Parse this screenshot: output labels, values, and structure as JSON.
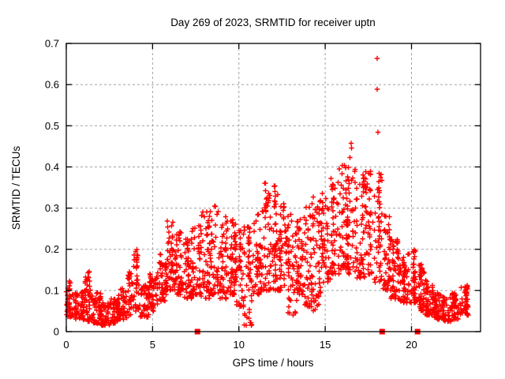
{
  "window": {
    "background_color": "#ffffff"
  },
  "chart_data": {
    "type": "scatter",
    "title": "Day 269 of 2023, SRMTID for receiver uptn",
    "xlabel": "GPS time / hours",
    "ylabel": "SRMTID / TECUs",
    "xlim": [
      0,
      24
    ],
    "ylim": [
      0,
      0.7
    ],
    "xticks": [
      0,
      5,
      10,
      15,
      20
    ],
    "xtick_labels": [
      "0",
      "5",
      "10",
      "15",
      "20"
    ],
    "yticks": [
      0,
      0.1,
      0.2,
      0.3,
      0.4,
      0.5,
      0.6,
      0.7
    ],
    "ytick_labels": [
      "0",
      "0.1",
      "0.2",
      "0.3",
      "0.4",
      "0.5",
      "0.6",
      "0.7"
    ],
    "grid": "dashed",
    "legend": "none",
    "series": [
      {
        "name": "srmtid",
        "marker": "plus",
        "color": "#ff0000",
        "envelope_bins_comment": "each bin = [hour_start, hour_end, y_min, y_max, point_count] describing the dense scatter cloud",
        "envelope_bins": [
          [
            0.0,
            0.5,
            0.035,
            0.125,
            50
          ],
          [
            0.5,
            1.0,
            0.03,
            0.1,
            48
          ],
          [
            1.0,
            1.5,
            0.025,
            0.15,
            48
          ],
          [
            1.5,
            2.0,
            0.02,
            0.095,
            48
          ],
          [
            2.0,
            2.5,
            0.015,
            0.07,
            48
          ],
          [
            2.5,
            3.0,
            0.02,
            0.08,
            48
          ],
          [
            3.0,
            3.5,
            0.03,
            0.105,
            48
          ],
          [
            3.5,
            3.8,
            0.04,
            0.15,
            28
          ],
          [
            3.8,
            4.25,
            0.05,
            0.2,
            40
          ],
          [
            4.25,
            4.8,
            0.035,
            0.115,
            45
          ],
          [
            4.8,
            5.3,
            0.05,
            0.145,
            45
          ],
          [
            5.3,
            5.8,
            0.07,
            0.19,
            45
          ],
          [
            5.8,
            6.3,
            0.1,
            0.27,
            48
          ],
          [
            6.3,
            6.8,
            0.09,
            0.245,
            48
          ],
          [
            6.8,
            7.3,
            0.08,
            0.225,
            48
          ],
          [
            7.3,
            7.8,
            0.09,
            0.26,
            48
          ],
          [
            7.8,
            8.3,
            0.08,
            0.295,
            48
          ],
          [
            8.3,
            8.8,
            0.09,
            0.31,
            48
          ],
          [
            8.8,
            9.3,
            0.08,
            0.285,
            48
          ],
          [
            9.3,
            9.8,
            0.09,
            0.3,
            48
          ],
          [
            9.8,
            10.3,
            0.06,
            0.25,
            48
          ],
          [
            10.3,
            10.8,
            0.015,
            0.27,
            48
          ],
          [
            10.8,
            11.3,
            0.09,
            0.285,
            48
          ],
          [
            11.3,
            11.8,
            0.1,
            0.37,
            48
          ],
          [
            11.8,
            12.3,
            0.1,
            0.36,
            48
          ],
          [
            12.3,
            12.8,
            0.1,
            0.315,
            48
          ],
          [
            12.8,
            13.3,
            0.04,
            0.285,
            48
          ],
          [
            13.3,
            13.8,
            0.09,
            0.285,
            48
          ],
          [
            13.8,
            14.3,
            0.06,
            0.315,
            48
          ],
          [
            14.3,
            14.8,
            0.05,
            0.33,
            48
          ],
          [
            14.8,
            15.3,
            0.12,
            0.345,
            48
          ],
          [
            15.3,
            15.8,
            0.14,
            0.38,
            48
          ],
          [
            15.8,
            16.3,
            0.15,
            0.405,
            48
          ],
          [
            16.3,
            16.8,
            0.14,
            0.43,
            48
          ],
          [
            16.8,
            17.3,
            0.13,
            0.385,
            48
          ],
          [
            17.3,
            17.8,
            0.14,
            0.4,
            48
          ],
          [
            17.8,
            18.3,
            0.12,
            0.385,
            48
          ],
          [
            18.3,
            18.8,
            0.1,
            0.285,
            48
          ],
          [
            18.8,
            19.3,
            0.08,
            0.225,
            48
          ],
          [
            19.3,
            19.8,
            0.07,
            0.185,
            48
          ],
          [
            19.8,
            20.3,
            0.07,
            0.2,
            48
          ],
          [
            20.3,
            20.8,
            0.05,
            0.165,
            48
          ],
          [
            20.8,
            21.3,
            0.04,
            0.125,
            48
          ],
          [
            21.3,
            21.8,
            0.03,
            0.095,
            48
          ],
          [
            21.8,
            22.3,
            0.025,
            0.085,
            48
          ],
          [
            22.3,
            22.8,
            0.03,
            0.095,
            48
          ],
          [
            22.8,
            23.3,
            0.04,
            0.115,
            44
          ]
        ],
        "outliers": [
          [
            18.0,
            0.664
          ],
          [
            18.0,
            0.589
          ],
          [
            18.05,
            0.484
          ],
          [
            16.5,
            0.457
          ],
          [
            16.52,
            0.446
          ],
          [
            14.1,
            0.062
          ],
          [
            10.7,
            0.022
          ]
        ]
      },
      {
        "name": "flags",
        "marker": "filled-square",
        "color": "#ff0000",
        "points": [
          [
            7.6,
            0
          ],
          [
            18.3,
            0
          ],
          [
            20.35,
            0
          ]
        ]
      }
    ],
    "colors": {
      "points": "#ff0000",
      "grid": "#a0a0a0",
      "axis": "#000000",
      "text": "#000000",
      "background": "#ffffff"
    }
  }
}
